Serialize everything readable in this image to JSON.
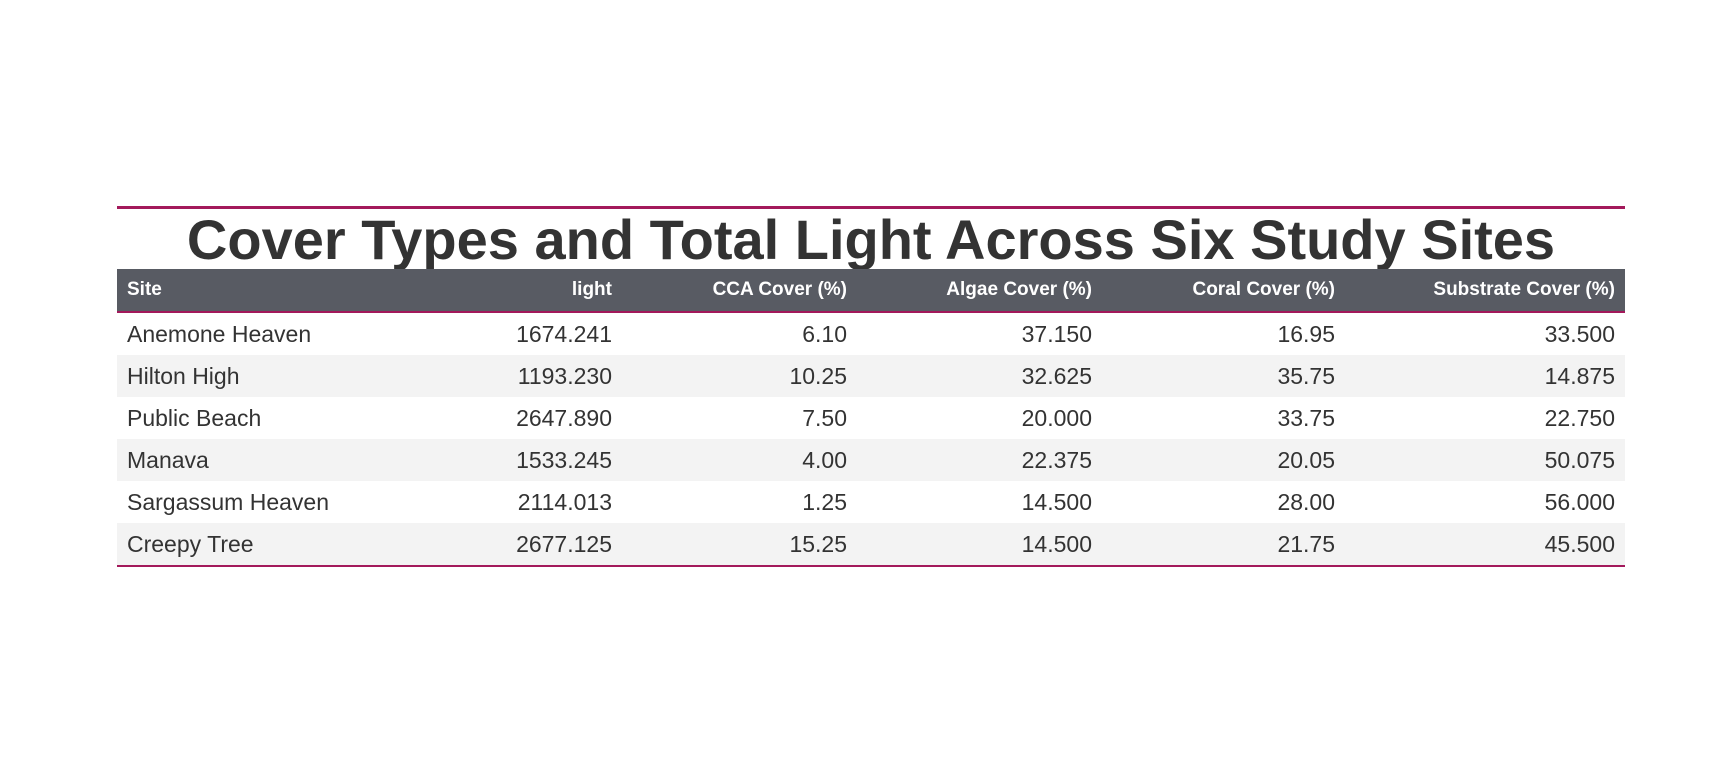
{
  "chart_data": {
    "type": "table",
    "title": "Cover Types and Total Light Across Six Study Sites",
    "columns": [
      "Site",
      "light",
      "CCA Cover (%)",
      "Algae Cover (%)",
      "Coral Cover (%)",
      "Substrate Cover (%)"
    ],
    "rows": [
      [
        "Anemone Heaven",
        "1674.241",
        "6.10",
        "37.150",
        "16.95",
        "33.500"
      ],
      [
        "Hilton High",
        "1193.230",
        "10.25",
        "32.625",
        "35.75",
        "14.875"
      ],
      [
        "Public Beach",
        "2647.890",
        "7.50",
        "20.000",
        "33.75",
        "22.750"
      ],
      [
        "Manava",
        "1533.245",
        "4.00",
        "22.375",
        "20.05",
        "50.075"
      ],
      [
        "Sargassum Heaven",
        "2114.013",
        "1.25",
        "14.500",
        "28.00",
        "56.000"
      ],
      [
        "Creepy Tree",
        "2677.125",
        "15.25",
        "14.500",
        "21.75",
        "45.500"
      ]
    ],
    "colors": {
      "header_bg": "#585b63",
      "accent_rule": "#a3195b",
      "stripe": "#f3f3f3",
      "text": "#333333"
    }
  }
}
